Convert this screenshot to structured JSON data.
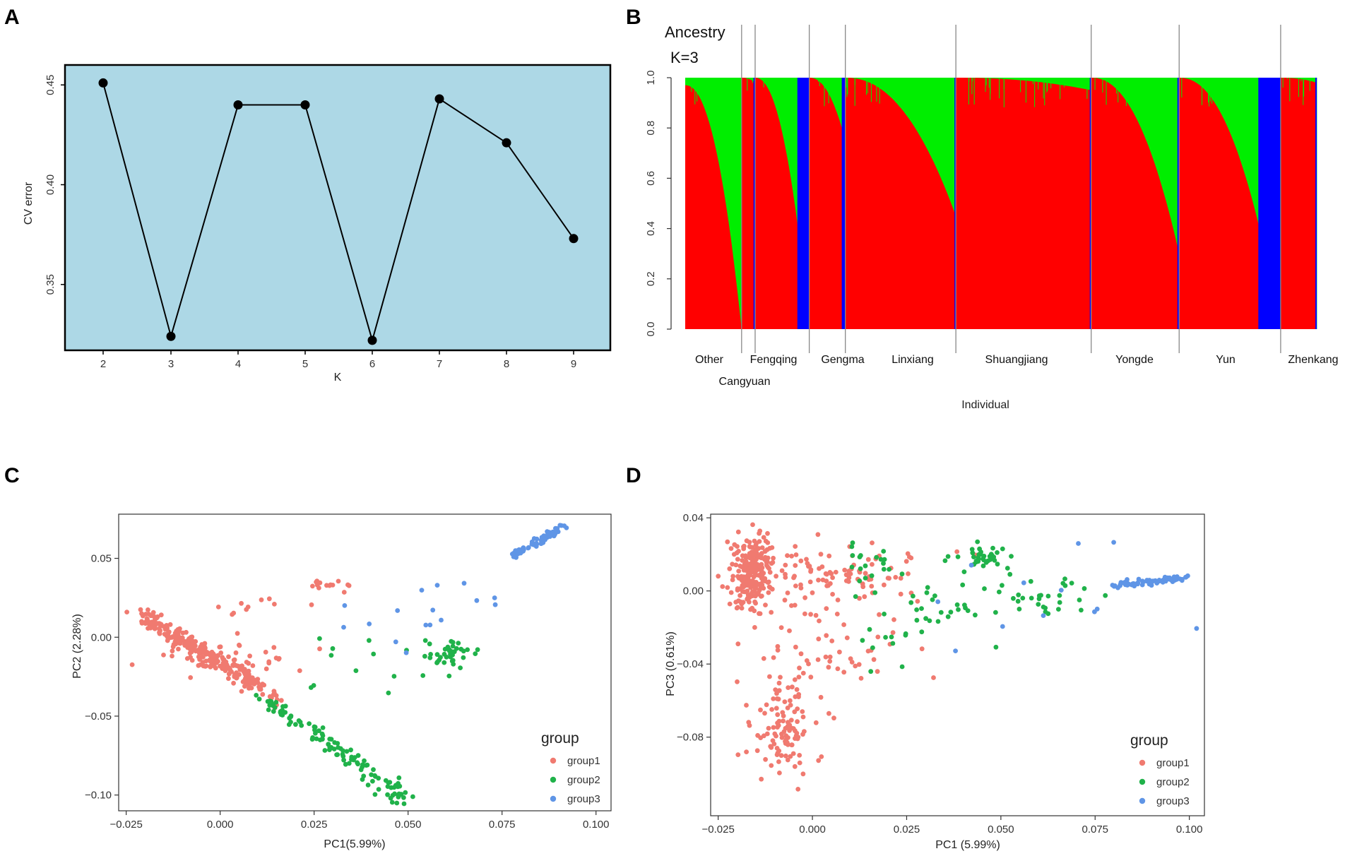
{
  "figure": {
    "letters": [
      "A",
      "B",
      "C",
      "D"
    ]
  },
  "chart_data": [
    {
      "id": "A",
      "type": "line",
      "title": "",
      "xlabel": "K",
      "ylabel": "CV error",
      "background": "#add8e6",
      "x": [
        2,
        3,
        4,
        5,
        6,
        7,
        8,
        9
      ],
      "values": [
        0.451,
        0.324,
        0.44,
        0.44,
        0.322,
        0.443,
        0.421,
        0.373
      ],
      "xticks": [
        "2",
        "3",
        "4",
        "5",
        "6",
        "7",
        "8",
        "9"
      ],
      "yticks": [
        "0.35",
        "0.40",
        "0.45"
      ],
      "ylim": [
        0.317,
        0.46
      ]
    },
    {
      "id": "B",
      "type": "bar",
      "title": "Ancestry",
      "subtitle": "K=3",
      "xlabel": "Individual",
      "ylabel": "",
      "yticks": [
        "0.0",
        "0.2",
        "0.4",
        "0.6",
        "0.8",
        "1.0"
      ],
      "ylim": [
        0,
        1
      ],
      "colors": {
        "red": "#ff0000",
        "green": "#00ee00",
        "blue": "#0000ff"
      },
      "populations": [
        {
          "name": "Other",
          "count": 50,
          "red_start": 0.97,
          "red_end": 0.0,
          "blue_frac": 0.0
        },
        {
          "name": "Cangyuan",
          "count": 12,
          "red_start": 1.0,
          "red_end": 0.98,
          "blue_frac": 0.12
        },
        {
          "name": "Fengqing",
          "count": 48,
          "red_start": 1.0,
          "red_end": 0.0,
          "blue_frac": 0.22
        },
        {
          "name": "Gengma",
          "count": 32,
          "red_start": 1.0,
          "red_end": 0.75,
          "blue_frac": 0.1
        },
        {
          "name": "Linxiang",
          "count": 98,
          "red_start": 1.0,
          "red_end": 0.45,
          "blue_frac": 0.01
        },
        {
          "name": "Shuangjiang",
          "count": 120,
          "red_start": 1.0,
          "red_end": 0.95,
          "blue_frac": 0.01
        },
        {
          "name": "Yongde",
          "count": 78,
          "red_start": 1.0,
          "red_end": 0.3,
          "blue_frac": 0.02
        },
        {
          "name": "Yun",
          "count": 90,
          "red_start": 1.0,
          "red_end": 0.0,
          "blue_frac": 0.22
        },
        {
          "name": "Zhenkang",
          "count": 32,
          "red_start": 1.0,
          "red_end": 0.98,
          "blue_frac": 0.02
        }
      ]
    },
    {
      "id": "C",
      "type": "scatter",
      "xlabel": "PC1(5.99%)",
      "ylabel": "PC2 (2.28%)",
      "xlim": [
        -0.027,
        0.104
      ],
      "ylim": [
        -0.11,
        0.078
      ],
      "xticks": [
        "-0.025",
        "0.000",
        "0.025",
        "0.050",
        "0.075",
        "0.100"
      ],
      "yticks": [
        "-0.10",
        "-0.05",
        "0.00",
        "0.05"
      ],
      "legend_title": "group",
      "legend_position": "bottom-right",
      "series": [
        {
          "name": "group1",
          "color": "#f07a70",
          "clusters": [
            {
              "type": "line",
              "x0": -0.021,
              "y0": 0.013,
              "x1": 0.01,
              "y1": -0.03,
              "n": 260,
              "jitter": [
                0.0012,
                0.003
              ]
            },
            {
              "type": "line",
              "x0": 0.006,
              "y0": -0.026,
              "x1": 0.016,
              "y1": -0.04,
              "n": 30,
              "jitter": [
                0.001,
                0.002
              ]
            },
            {
              "type": "blob",
              "x": 0.002,
              "y": -0.012,
              "n": 40,
              "spread": [
                0.01,
                0.006
              ]
            },
            {
              "type": "blob",
              "x": 0.03,
              "y": 0.033,
              "n": 14,
              "spread": [
                0.003,
                0.002
              ]
            },
            {
              "type": "blob",
              "x": 0.01,
              "y": 0.022,
              "n": 10,
              "spread": [
                0.006,
                0.004
              ]
            }
          ]
        },
        {
          "name": "group2",
          "color": "#20b24a",
          "clusters": [
            {
              "type": "line",
              "x0": 0.012,
              "y0": -0.04,
              "x1": 0.049,
              "y1": -0.102,
              "n": 120,
              "jitter": [
                0.0015,
                0.003
              ]
            },
            {
              "type": "blob",
              "x": 0.061,
              "y": -0.01,
              "n": 40,
              "spread": [
                0.004,
                0.005
              ]
            },
            {
              "type": "blob",
              "x": 0.036,
              "y": -0.025,
              "n": 12,
              "spread": [
                0.01,
                0.015
              ]
            }
          ]
        },
        {
          "name": "group3",
          "color": "#5f95e6",
          "clusters": [
            {
              "type": "line",
              "x0": 0.078,
              "y0": 0.052,
              "x1": 0.092,
              "y1": 0.071,
              "n": 60,
              "jitter": [
                0.0008,
                0.0012
              ]
            },
            {
              "type": "blob",
              "x": 0.055,
              "y": 0.012,
              "n": 16,
              "spread": [
                0.012,
                0.012
              ]
            }
          ]
        }
      ]
    },
    {
      "id": "D",
      "type": "scatter",
      "xlabel": "PC1 (5.99%)",
      "ylabel": "PC3 (0.61%)",
      "xlim": [
        -0.027,
        0.104
      ],
      "ylim": [
        -0.123,
        0.042
      ],
      "xticks": [
        "-0.025",
        "0.000",
        "0.025",
        "0.050",
        "0.075",
        "0.100"
      ],
      "yticks": [
        "-0.08",
        "-0.04",
        "0.00",
        "0.04"
      ],
      "legend_title": "group",
      "legend_position": "bottom-right",
      "series": [
        {
          "name": "group1",
          "color": "#f07a70",
          "clusters": [
            {
              "type": "blob",
              "x": -0.016,
              "y": 0.01,
              "n": 240,
              "spread": [
                0.0025,
                0.01
              ]
            },
            {
              "type": "blob",
              "x": 0.0,
              "y": 0.01,
              "n": 90,
              "spread": [
                0.01,
                0.008
              ]
            },
            {
              "type": "blob",
              "x": -0.008,
              "y": -0.075,
              "n": 110,
              "spread": [
                0.004,
                0.014
              ]
            },
            {
              "type": "blob",
              "x": 0.005,
              "y": -0.03,
              "n": 50,
              "spread": [
                0.01,
                0.015
              ]
            },
            {
              "type": "blob",
              "x": 0.02,
              "y": 0.01,
              "n": 20,
              "spread": [
                0.008,
                0.01
              ]
            }
          ]
        },
        {
          "name": "group2",
          "color": "#20b24a",
          "clusters": [
            {
              "type": "blob",
              "x": 0.045,
              "y": 0.018,
              "n": 35,
              "spread": [
                0.003,
                0.003
              ]
            },
            {
              "type": "blob",
              "x": 0.03,
              "y": -0.01,
              "n": 45,
              "spread": [
                0.012,
                0.014
              ]
            },
            {
              "type": "blob",
              "x": 0.062,
              "y": -0.003,
              "n": 30,
              "spread": [
                0.006,
                0.007
              ]
            },
            {
              "type": "blob",
              "x": 0.015,
              "y": 0.015,
              "n": 18,
              "spread": [
                0.003,
                0.006
              ]
            }
          ]
        },
        {
          "name": "group3",
          "color": "#5f95e6",
          "clusters": [
            {
              "type": "line",
              "x0": 0.08,
              "y0": 0.003,
              "x1": 0.099,
              "y1": 0.007,
              "n": 70,
              "jitter": [
                0.0008,
                0.0008
              ]
            },
            {
              "type": "blob",
              "x": 0.06,
              "y": -0.005,
              "n": 12,
              "spread": [
                0.015,
                0.015
              ]
            }
          ]
        }
      ]
    }
  ]
}
